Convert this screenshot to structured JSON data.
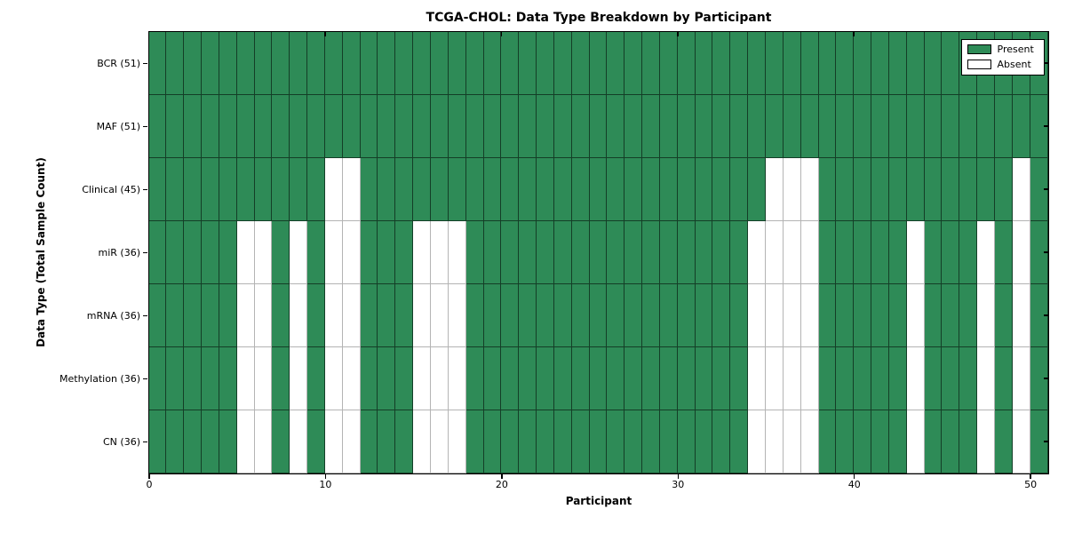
{
  "chart_data": {
    "type": "heatmap",
    "title": "TCGA-CHOL: Data Type Breakdown by Participant",
    "xlabel": "Participant",
    "ylabel": "Data Type (Total Sample Count)",
    "n_participants": 51,
    "x_ticks": [
      0,
      10,
      20,
      30,
      40,
      50
    ],
    "x_range": [
      0,
      51
    ],
    "grid": "cell-borders",
    "legend_position": "upper right",
    "rows": [
      {
        "label": "BCR (51)",
        "total": 51,
        "absent": []
      },
      {
        "label": "MAF (51)",
        "total": 51,
        "absent": []
      },
      {
        "label": "Clinical (45)",
        "total": 45,
        "absent": [
          10,
          11,
          35,
          36,
          37,
          49
        ]
      },
      {
        "label": "miR (36)",
        "total": 36,
        "absent": [
          5,
          6,
          8,
          10,
          11,
          15,
          16,
          17,
          34,
          35,
          36,
          37,
          43,
          47,
          49
        ]
      },
      {
        "label": "mRNA (36)",
        "total": 36,
        "absent": [
          5,
          6,
          8,
          10,
          11,
          15,
          16,
          17,
          34,
          35,
          36,
          37,
          43,
          47,
          49
        ]
      },
      {
        "label": "Methylation (36)",
        "total": 36,
        "absent": [
          5,
          6,
          8,
          10,
          11,
          15,
          16,
          17,
          34,
          35,
          36,
          37,
          43,
          47,
          49
        ]
      },
      {
        "label": "CN (36)",
        "total": 36,
        "absent": [
          5,
          6,
          8,
          10,
          11,
          15,
          16,
          17,
          34,
          35,
          36,
          37,
          43,
          47,
          49
        ]
      }
    ],
    "legend": [
      {
        "label": "Present",
        "color": "#2e8b57"
      },
      {
        "label": "Absent",
        "color": "#ffffff"
      }
    ],
    "colors": {
      "present": "#2e8b57",
      "absent": "#ffffff"
    }
  }
}
